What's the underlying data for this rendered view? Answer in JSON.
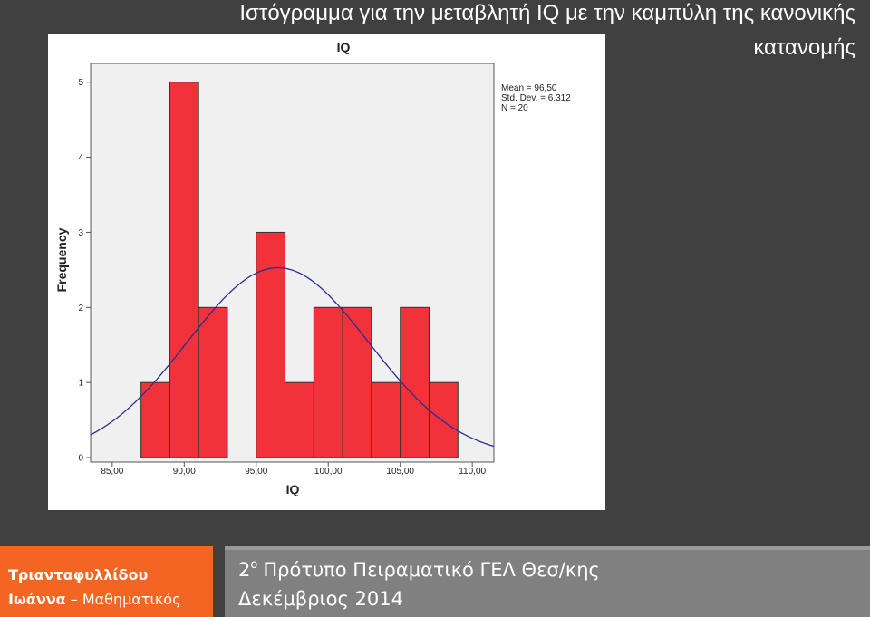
{
  "slide": {
    "title_lines": [
      "Ιστόγραμμα για την μεταβλητή IQ με την καμπύλη της κανονικής",
      "κατανομής"
    ],
    "footer": {
      "author_surname": "Τριανταφυλλίδου",
      "author_name": "Ιωάννα",
      "author_role": "– Μαθηματικός",
      "school_number": "2",
      "school_sup": "ο",
      "school_rest": "Πρότυπο Πειραματικό ΓΕΛ Θεσ/κης",
      "date": "Δεκέμβριος 2014"
    }
  },
  "chart_data": {
    "type": "histogram",
    "title": "IQ",
    "x_label": "IQ",
    "y_label": "Frequency",
    "bins": [
      87,
      89,
      91,
      93,
      95,
      97,
      99,
      101,
      103,
      105,
      107,
      109
    ],
    "values": [
      1,
      5,
      2,
      0,
      3,
      1,
      2,
      2,
      1,
      2,
      1
    ],
    "color": "#f2323a",
    "curve_color": "#2b2f8f",
    "normal_curve": {
      "mean": 96.5,
      "sd": 6.312,
      "n": 20
    },
    "stats_labels": [
      "Mean = 96,50",
      "Std. Dev. = 6,312",
      "N = 20"
    ],
    "xlim": [
      83.5,
      111.5
    ],
    "ylim": [
      -0.06,
      5.25
    ],
    "xticks": [
      {
        "value": 85,
        "label": "85,00"
      },
      {
        "value": 90,
        "label": "90,00"
      },
      {
        "value": 95,
        "label": "95,00"
      },
      {
        "value": 100,
        "label": "100,00"
      },
      {
        "value": 105,
        "label": "105,00"
      },
      {
        "value": 110,
        "label": "110,00"
      }
    ],
    "yticks": [
      0,
      1,
      2,
      3,
      4,
      5
    ]
  }
}
